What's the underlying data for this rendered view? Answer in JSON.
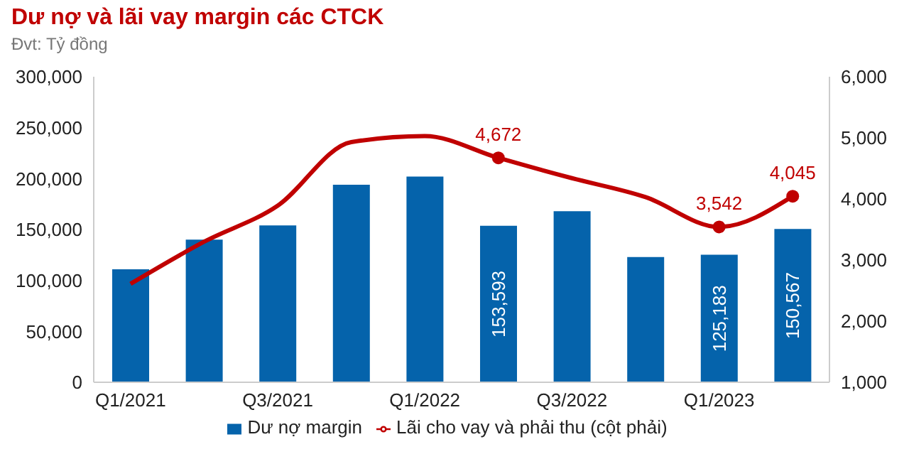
{
  "chart_data": {
    "type": "bar",
    "title": "Dư nợ và lãi vay margin các CTCK",
    "subtitle": "Đvt: Tỷ đồng",
    "categories": [
      "Q1/2021",
      null,
      "Q3/2021",
      null,
      "Q1/2022",
      null,
      "Q3/2022",
      null,
      "Q1/2023",
      null
    ],
    "series": [
      {
        "name": "Dư nợ margin",
        "color": "#0563ab",
        "values": [
          111000,
          140000,
          154000,
          194000,
          202000,
          153593,
          168000,
          123000,
          125183,
          150567
        ],
        "value_labels": [
          null,
          null,
          null,
          null,
          null,
          "153,593",
          null,
          null,
          "125,183",
          "150,567"
        ]
      },
      {
        "name": "Lãi cho vay và phải thu (cột phải)",
        "type": "line",
        "axis": "y2",
        "color": "#c00000",
        "values": [
          2610,
          3300,
          3890,
          4930,
          5030,
          4672,
          4340,
          4030,
          3542,
          4045
        ],
        "value_labels": [
          null,
          null,
          null,
          null,
          null,
          "4,672",
          null,
          null,
          "3,542",
          "4,045"
        ]
      }
    ],
    "ylim": [
      0,
      300000
    ],
    "yticks": [
      0,
      {
        "value": 50000,
        "label": "50,000"
      },
      {
        "value": 100000,
        "label": "100,000"
      },
      {
        "value": 150000,
        "label": "150,000"
      },
      {
        "value": 200000,
        "label": "200,000"
      },
      {
        "value": 250000,
        "label": "250,000"
      },
      {
        "value": 300000,
        "label": "300,000"
      }
    ],
    "y2lim": [
      1000,
      6000
    ],
    "y2ticks": [
      {
        "value": 1000,
        "label": "1,000"
      },
      {
        "value": 2000,
        "label": "2,000"
      },
      {
        "value": 3000,
        "label": "3,000"
      },
      {
        "value": 4000,
        "label": "4,000"
      },
      {
        "value": 5000,
        "label": "5,000"
      },
      {
        "value": 6000,
        "label": "6,000"
      }
    ],
    "legend": "bottom"
  }
}
